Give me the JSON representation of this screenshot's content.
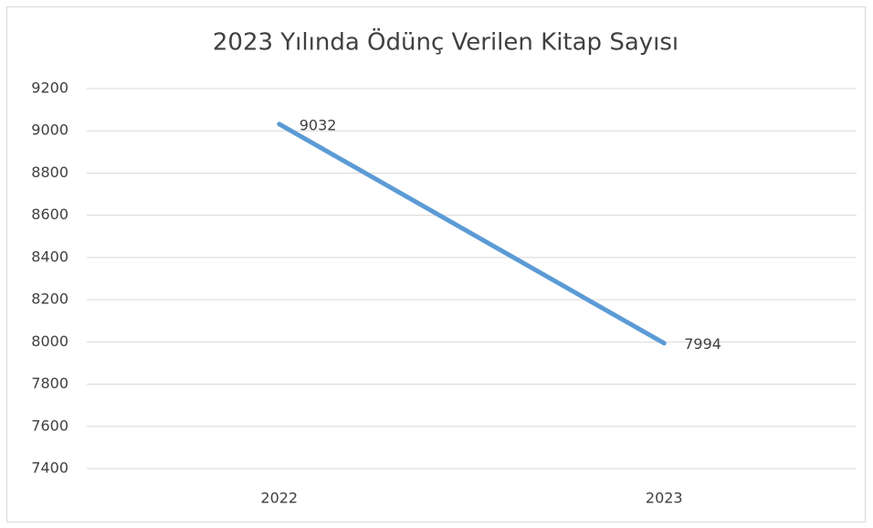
{
  "chart_data": {
    "type": "line",
    "title": "2023 Yılında Ödünç Verilen Kitap Sayısı",
    "categories": [
      "2022",
      "2023"
    ],
    "values": [
      9032,
      7994
    ],
    "color": "#5b9bd5",
    "ylim": [
      7400,
      9200
    ],
    "yticks": [
      7400,
      7600,
      7800,
      8000,
      8200,
      8400,
      8600,
      8800,
      9000,
      9200
    ],
    "grid": true,
    "data_labels": true
  }
}
